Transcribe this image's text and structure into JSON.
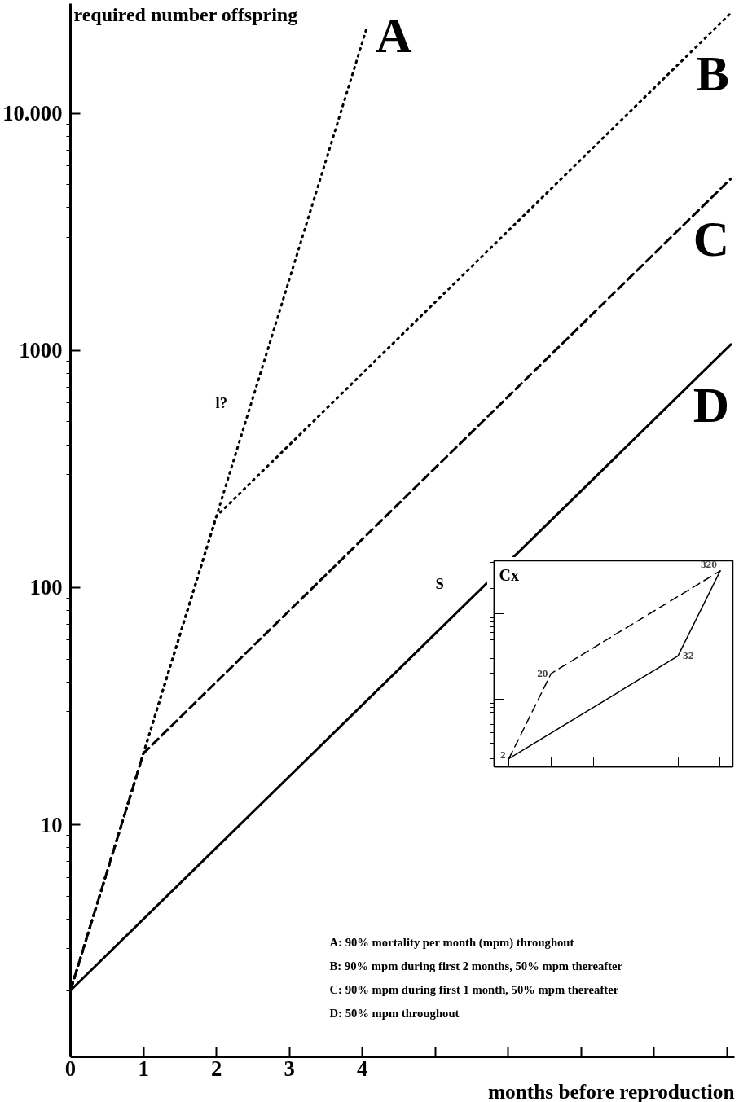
{
  "chart_data": [
    {
      "type": "line",
      "xlabel": "months before reproduction",
      "ylabel": "required number offspring",
      "log": "y",
      "grid": false,
      "marker": "none",
      "xlim": [
        0,
        9.1
      ],
      "ylim": [
        1.05,
        29000
      ],
      "xticks": [
        0,
        1,
        2,
        3,
        4,
        {
          "value": 5,
          "label": null
        },
        {
          "value": 6,
          "label": null
        },
        {
          "value": 7,
          "label": null
        },
        {
          "value": 8,
          "label": null
        },
        {
          "value": 9,
          "label": null
        }
      ],
      "yticks": [
        10,
        100,
        1000,
        {
          "value": 10000,
          "label": "10.000"
        }
      ],
      "series": [
        {
          "name": "A",
          "color": "#000000",
          "line_style": "dotted",
          "x": [
            0,
            4.05
          ],
          "values": [
            2,
            22400
          ]
        },
        {
          "name": "B",
          "color": "#000000",
          "line_style": "dotted",
          "x": [
            0,
            2,
            9.05
          ],
          "values": [
            2,
            200,
            26500
          ]
        },
        {
          "name": "C",
          "color": "#000000",
          "line_style": "dashed",
          "x": [
            0,
            1,
            9.05
          ],
          "values": [
            2,
            20,
            5300
          ]
        },
        {
          "name": "D",
          "color": "#000000",
          "line_style": "solid",
          "x": [
            0,
            9.05
          ],
          "values": [
            2,
            1060
          ]
        }
      ],
      "annotations": [
        "l?",
        "S",
        "A: 90% mortality per month (mpm) throughout",
        "B: 90% mpm during first 2 months, 50% mpm thereafter",
        "C: 90% mpm during first 1 month, 50% mpm thereafter",
        "D: 50% mpm throughout"
      ]
    },
    {
      "type": "line",
      "title": "Cx",
      "log": "y",
      "grid": false,
      "marker": "none",
      "categories": [
        null,
        null,
        null,
        null,
        null,
        null
      ],
      "ylim": [
        1.6,
        420
      ],
      "yticks": [
        {
          "value": 10,
          "label": null
        },
        {
          "value": 100,
          "label": null
        }
      ],
      "series": [
        {
          "color": "#000000",
          "line_style": "dashed",
          "values": [
            2,
            20,
            null,
            null,
            null,
            320
          ],
          "value_labels": [
            "2",
            "20",
            null,
            null,
            null,
            "320"
          ]
        },
        {
          "color": "#000000",
          "line_style": "solid",
          "values": [
            2,
            null,
            null,
            null,
            32,
            320
          ],
          "value_labels": [
            null,
            null,
            null,
            null,
            "32",
            null
          ]
        }
      ]
    }
  ]
}
